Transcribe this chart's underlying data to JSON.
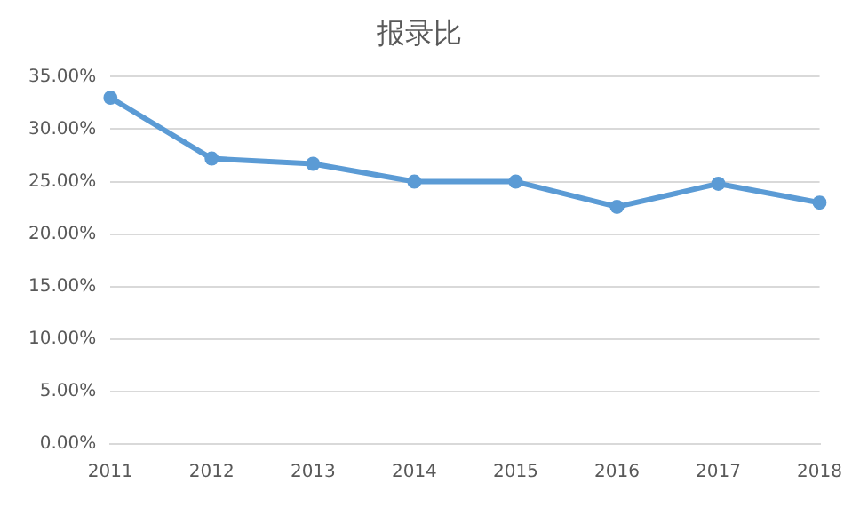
{
  "chart_data": {
    "type": "line",
    "title": "报录比",
    "categories": [
      "2011",
      "2012",
      "2013",
      "2014",
      "2015",
      "2016",
      "2017",
      "2018"
    ],
    "series": [
      {
        "color": "#5b9bd5",
        "values": [
          33.0,
          27.2,
          26.7,
          25.0,
          25.0,
          22.6,
          24.8,
          23.0
        ]
      }
    ],
    "ylim": [
      0,
      35
    ],
    "yticks": [
      {
        "value": 0,
        "label": "0.00%"
      },
      {
        "value": 5,
        "label": "5.00%"
      },
      {
        "value": 10,
        "label": "10.00%"
      },
      {
        "value": 15,
        "label": "15.00%"
      },
      {
        "value": 20,
        "label": "20.00%"
      },
      {
        "value": 25,
        "label": "25.00%"
      },
      {
        "value": 30,
        "label": "30.00%"
      },
      {
        "value": 35,
        "label": "35.00%"
      }
    ],
    "grid": "y",
    "legend": false,
    "marker": "circle",
    "line_style": "solid"
  }
}
